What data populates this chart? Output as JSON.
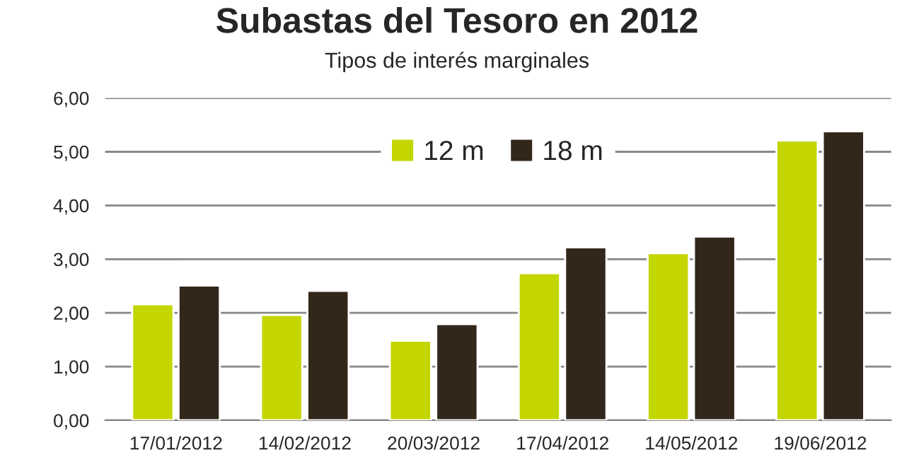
{
  "chart_data": {
    "type": "bar",
    "title": "Subastas del Tesoro en 2012",
    "subtitle": "Tipos de interés marginales",
    "categories": [
      "17/01/2012",
      "14/02/2012",
      "20/03/2012",
      "17/04/2012",
      "14/05/2012",
      "19/06/2012"
    ],
    "series": [
      {
        "name": "12 m",
        "color": "#c4d600",
        "values": [
          2.16,
          1.96,
          1.48,
          2.74,
          3.11,
          5.21
        ]
      },
      {
        "name": "18 m",
        "color": "#33271c",
        "values": [
          2.51,
          2.41,
          1.79,
          3.22,
          3.42,
          5.38
        ]
      }
    ],
    "ylim": [
      0,
      6
    ],
    "yticks": [
      {
        "value": 0,
        "label": "0,00"
      },
      {
        "value": 1,
        "label": "1,00"
      },
      {
        "value": 2,
        "label": "2,00"
      },
      {
        "value": 3,
        "label": "3,00"
      },
      {
        "value": 4,
        "label": "4,00"
      },
      {
        "value": 5,
        "label": "5,00"
      },
      {
        "value": 6,
        "label": "6,00"
      }
    ],
    "grid": "y",
    "legend": "top"
  }
}
